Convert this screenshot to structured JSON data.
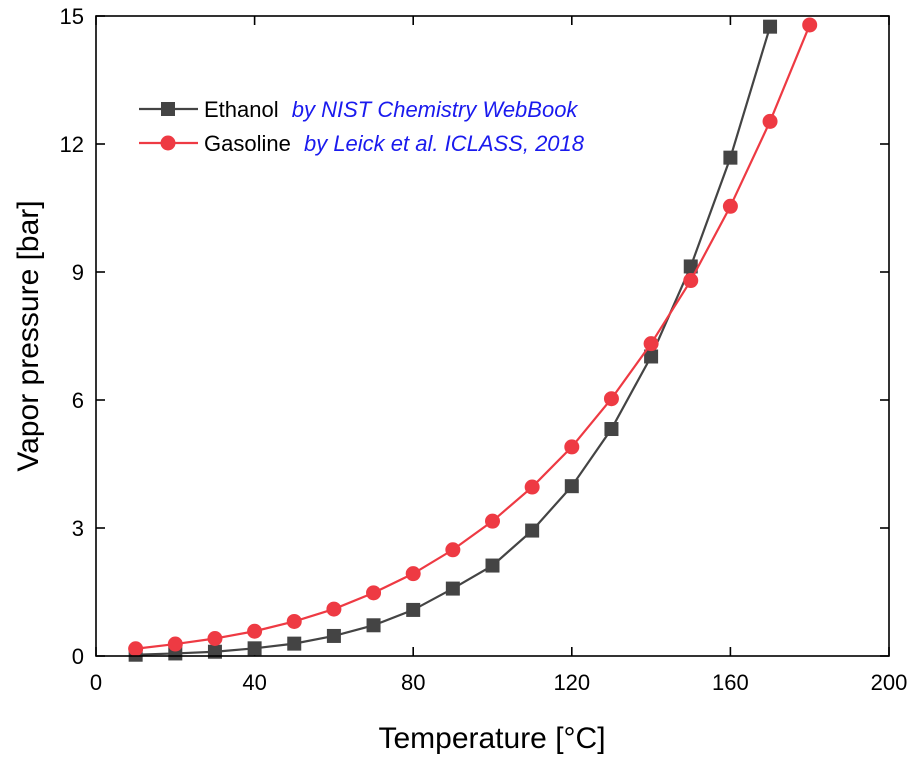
{
  "chart_data": {
    "type": "line",
    "xlabel": "Temperature [°C]",
    "ylabel": "Vapor pressure [bar]",
    "xlim": [
      0,
      200
    ],
    "ylim": [
      0,
      15
    ],
    "x_ticks": [
      0,
      40,
      80,
      120,
      160,
      200
    ],
    "y_ticks": [
      0,
      3,
      6,
      9,
      12,
      15
    ],
    "x_tick_labels": [
      "0",
      "40",
      "80",
      "120",
      "160",
      "200"
    ],
    "y_tick_labels": [
      "0",
      "3",
      "6",
      "9",
      "12",
      "15"
    ],
    "grid": false,
    "legend_position": "top-left",
    "series": [
      {
        "name": "Ethanol",
        "source": "by NIST Chemistry WebBook",
        "color": "#444444",
        "marker": "square",
        "x": [
          10,
          20,
          30,
          40,
          50,
          60,
          70,
          80,
          90,
          100,
          110,
          120,
          130,
          140,
          150,
          160,
          170
        ],
        "y": [
          0.03,
          0.06,
          0.1,
          0.18,
          0.29,
          0.47,
          0.72,
          1.08,
          1.58,
          2.12,
          2.94,
          3.98,
          5.32,
          7.02,
          9.13,
          11.68,
          14.75
        ]
      },
      {
        "name": "Gasoline",
        "source": "by Leick et al. ICLASS, 2018",
        "color": "#ee3a43",
        "marker": "circle",
        "x": [
          10,
          20,
          30,
          40,
          50,
          60,
          70,
          80,
          90,
          100,
          110,
          120,
          130,
          140,
          150,
          160,
          170,
          180
        ],
        "y": [
          0.17,
          0.28,
          0.41,
          0.58,
          0.81,
          1.1,
          1.48,
          1.93,
          2.49,
          3.16,
          3.96,
          4.9,
          6.03,
          7.32,
          8.8,
          10.54,
          12.53,
          14.79
        ]
      }
    ],
    "source_color": "#1a1aee"
  }
}
